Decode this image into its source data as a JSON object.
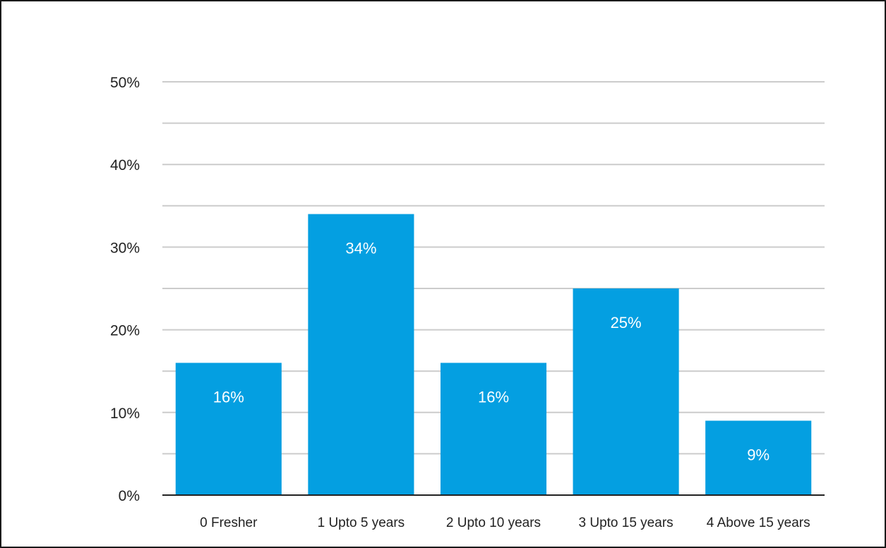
{
  "chart_data": {
    "type": "bar",
    "title": "",
    "xlabel": "",
    "ylabel": "",
    "categories": [
      "0 Fresher",
      "1 Upto 5 years",
      "2 Upto 10 years",
      "3 Upto 15 years",
      "4 Above 15 years"
    ],
    "values": [
      16,
      34,
      16,
      25,
      9
    ],
    "data_labels": [
      "16%",
      "34%",
      "16%",
      "25%",
      "9%"
    ],
    "ylim": [
      0,
      50
    ],
    "y_ticks": [
      0,
      10,
      20,
      30,
      40,
      50
    ],
    "y_tick_labels": [
      "0%",
      "10%",
      "20%",
      "30%",
      "40%",
      "50%"
    ],
    "minor_gridlines": true,
    "grid": true,
    "legend": "none",
    "bar_color": "#049FE1",
    "grid_color": "#CCCCCC",
    "axis_color": "#222222"
  }
}
